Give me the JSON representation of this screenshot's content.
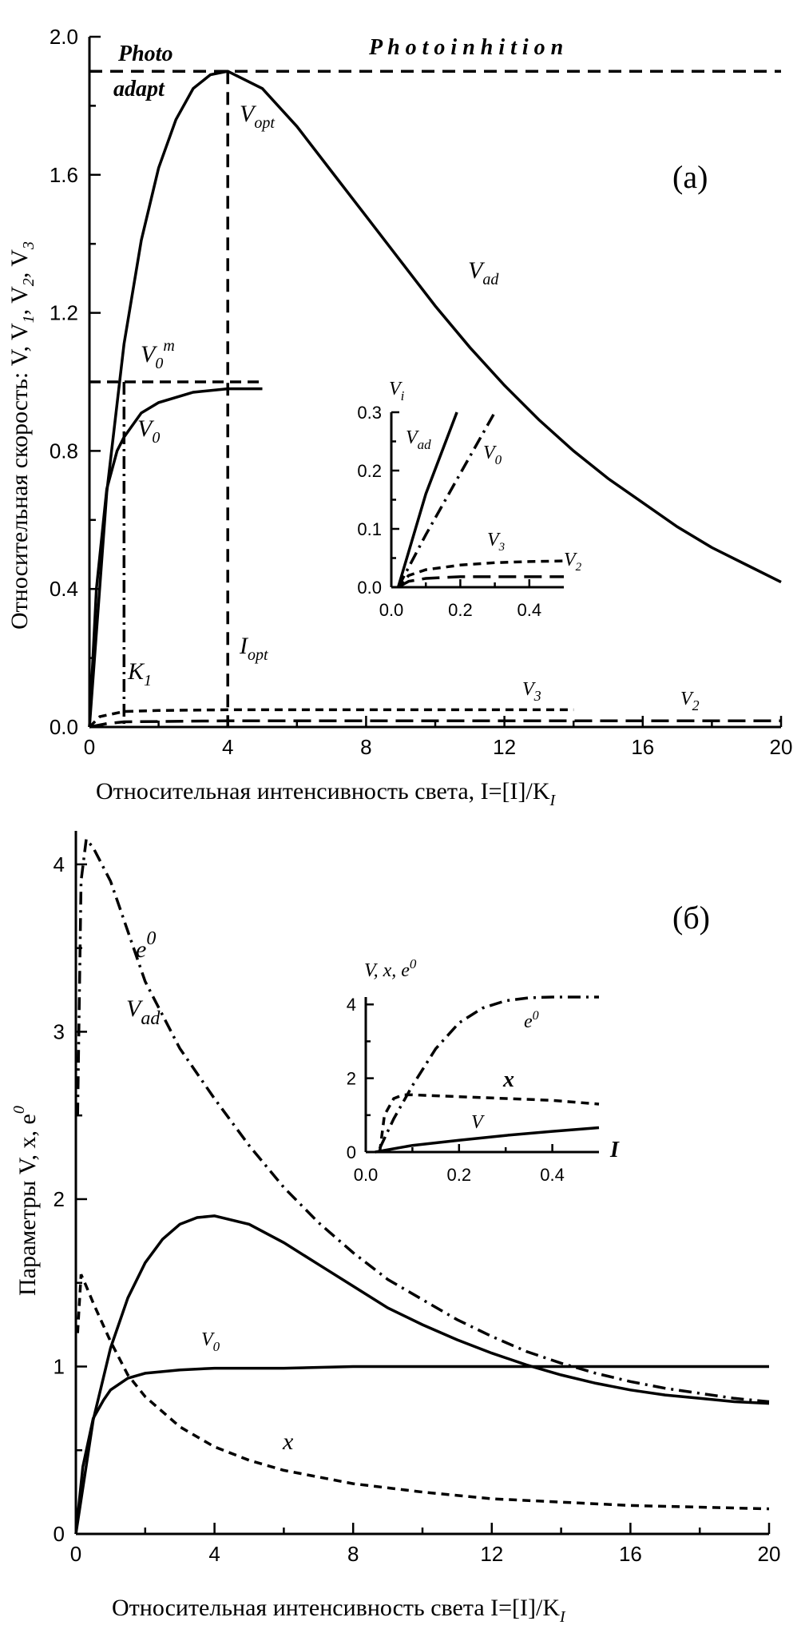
{
  "chart_data": [
    {
      "id": "panel_a",
      "type": "line",
      "panel_label": "(а)",
      "xlabel": "Относительная интенсивность света, I=[I]/K",
      "xlabel_sub": "I",
      "ylabel": "Относительная скорость: V, V",
      "ylabel_tail": ", V",
      "ylabel_tail2": ", V",
      "xlim": [
        0,
        20
      ],
      "ylim": [
        0,
        2.0
      ],
      "xticks": [
        "0",
        "4",
        "8",
        "12",
        "16",
        "20"
      ],
      "yticks": [
        "0.0",
        "0.4",
        "0.8",
        "1.2",
        "1.6",
        "2.0"
      ],
      "region_labels": {
        "photo": "Photo",
        "adapt": "adapt",
        "photoinhibition": "P h o t o i n h i t i o n"
      },
      "annotations": {
        "V_opt": "opt",
        "V_ad": "ad",
        "V0m": "0",
        "V0m_sup": "m",
        "V0": "0",
        "K1": "1",
        "I_opt": "opt",
        "V3": "3",
        "V2": "2"
      },
      "reference_lines": {
        "V_opt_level": 1.9,
        "I_opt": 4,
        "V0m_level": 1.0,
        "K1": 1
      },
      "series": [
        {
          "name": "V_ad",
          "x": [
            0,
            0.5,
            1,
            1.5,
            2,
            2.5,
            3,
            3.5,
            4,
            5,
            6,
            7,
            8,
            9,
            10,
            11,
            12,
            13,
            14,
            15,
            16,
            17,
            18,
            19,
            20
          ],
          "y": [
            0,
            0.68,
            1.11,
            1.41,
            1.62,
            1.76,
            1.85,
            1.89,
            1.9,
            1.85,
            1.74,
            1.61,
            1.48,
            1.35,
            1.22,
            1.1,
            0.99,
            0.89,
            0.8,
            0.72,
            0.65,
            0.58,
            0.52,
            0.47,
            0.42
          ]
        },
        {
          "name": "V_0",
          "x": [
            0,
            0.2,
            0.5,
            0.8,
            1,
            1.5,
            2,
            3,
            4,
            5
          ],
          "y": [
            0,
            0.4,
            0.69,
            0.8,
            0.84,
            0.91,
            0.94,
            0.97,
            0.98,
            0.98
          ]
        },
        {
          "name": "V_3",
          "x": [
            0,
            0.3,
            1,
            2,
            4,
            8,
            12,
            14
          ],
          "y": [
            0,
            0.03,
            0.045,
            0.048,
            0.05,
            0.05,
            0.05,
            0.05
          ]
        },
        {
          "name": "V_2",
          "x": [
            0,
            0.5,
            1,
            4,
            8,
            12,
            16,
            20
          ],
          "y": [
            0,
            0.01,
            0.015,
            0.018,
            0.018,
            0.018,
            0.018,
            0.018
          ]
        }
      ],
      "inset": {
        "ylabel": "V",
        "ylabel_sub": "i",
        "xlim": [
          0,
          0.5
        ],
        "ylim": [
          0,
          0.3
        ],
        "xticks": [
          "0.0",
          "0.2",
          "0.4"
        ],
        "yticks": [
          "0.0",
          "0.1",
          "0.2",
          "0.3"
        ],
        "labels": {
          "V_ad": "ad",
          "V_0": "0",
          "V_3": "3",
          "V_2": "2"
        },
        "series": [
          {
            "name": "V_ad",
            "x": [
              0.02,
              0.1,
              0.19
            ],
            "y": [
              0,
              0.16,
              0.3
            ]
          },
          {
            "name": "V_0",
            "x": [
              0.02,
              0.1,
              0.2,
              0.3
            ],
            "y": [
              0,
              0.09,
              0.195,
              0.3
            ]
          },
          {
            "name": "V_3",
            "x": [
              0.02,
              0.05,
              0.1,
              0.2,
              0.3,
              0.4,
              0.5
            ],
            "y": [
              0,
              0.02,
              0.03,
              0.038,
              0.042,
              0.044,
              0.045
            ]
          },
          {
            "name": "V_2",
            "x": [
              0.02,
              0.05,
              0.1,
              0.2,
              0.35,
              0.5
            ],
            "y": [
              0,
              0.01,
              0.015,
              0.018,
              0.018,
              0.018
            ]
          }
        ]
      }
    },
    {
      "id": "panel_b",
      "type": "line",
      "panel_label": "(б)",
      "xlabel": "Относительная интенсивность света I=[I]/K",
      "xlabel_sub": "I",
      "ylabel": "Параметры V, x, e",
      "ylabel_sup": "0",
      "xlim": [
        0,
        20
      ],
      "ylim": [
        0,
        4.2
      ],
      "xticks": [
        "0",
        "4",
        "8",
        "12",
        "16",
        "20"
      ],
      "yticks": [
        "0",
        "1",
        "2",
        "3",
        "4"
      ],
      "annotations": {
        "e0": "e",
        "e0_sup": "0",
        "V_ad": "ad",
        "V_0": "0",
        "x": "x"
      },
      "series": [
        {
          "name": "e0",
          "x": [
            0.05,
            0.15,
            0.3,
            0.5,
            1,
            1.5,
            2,
            3,
            4,
            5,
            6,
            7,
            8,
            9,
            10,
            11,
            12,
            13,
            14,
            15,
            16,
            17,
            18,
            19,
            20
          ],
          "y": [
            2.5,
            3.9,
            4.15,
            4.1,
            3.9,
            3.6,
            3.3,
            2.9,
            2.6,
            2.32,
            2.07,
            1.86,
            1.68,
            1.52,
            1.4,
            1.28,
            1.18,
            1.09,
            1.02,
            0.96,
            0.91,
            0.87,
            0.84,
            0.81,
            0.79
          ]
        },
        {
          "name": "V_ad",
          "x": [
            0,
            0.5,
            1,
            1.5,
            2,
            2.5,
            3,
            3.5,
            4,
            5,
            6,
            7,
            8,
            9,
            10,
            11,
            12,
            13,
            14,
            15,
            16,
            17,
            18,
            19,
            20
          ],
          "y": [
            0,
            0.68,
            1.11,
            1.41,
            1.62,
            1.76,
            1.85,
            1.89,
            1.9,
            1.85,
            1.74,
            1.61,
            1.48,
            1.35,
            1.25,
            1.16,
            1.08,
            1.01,
            0.95,
            0.9,
            0.86,
            0.83,
            0.81,
            0.79,
            0.78
          ]
        },
        {
          "name": "V_0",
          "x": [
            0,
            0.2,
            0.5,
            0.8,
            1,
            1.5,
            2,
            3,
            4,
            6,
            8,
            12,
            16,
            20
          ],
          "y": [
            0,
            0.4,
            0.69,
            0.8,
            0.86,
            0.93,
            0.96,
            0.98,
            0.99,
            0.99,
            1.0,
            1.0,
            1.0,
            1.0
          ]
        },
        {
          "name": "x",
          "x": [
            0.05,
            0.15,
            0.3,
            0.5,
            1,
            1.5,
            2,
            3,
            4,
            5,
            6,
            8,
            10,
            12,
            14,
            16,
            18,
            20
          ],
          "y": [
            1.2,
            1.55,
            1.48,
            1.38,
            1.15,
            0.95,
            0.82,
            0.64,
            0.52,
            0.44,
            0.38,
            0.3,
            0.25,
            0.21,
            0.19,
            0.17,
            0.16,
            0.15
          ]
        }
      ],
      "inset": {
        "ylabel": "V, x, e",
        "ylabel_sup": "0",
        "xlabel": "I",
        "xlim": [
          0,
          0.5
        ],
        "ylim": [
          0,
          4.2
        ],
        "xticks": [
          "0.0",
          "0.2",
          "0.4"
        ],
        "yticks": [
          "0",
          "2",
          "4"
        ],
        "labels": {
          "e0": "e",
          "e0_sup": "0",
          "x": "x",
          "V": "V"
        },
        "series": [
          {
            "name": "e0",
            "x": [
              0.03,
              0.06,
              0.1,
              0.15,
              0.2,
              0.25,
              0.3,
              0.35,
              0.4,
              0.5
            ],
            "y": [
              0.1,
              0.9,
              1.8,
              2.8,
              3.5,
              3.9,
              4.1,
              4.18,
              4.2,
              4.2
            ]
          },
          {
            "name": "x",
            "x": [
              0.03,
              0.04,
              0.06,
              0.08,
              0.1,
              0.2,
              0.3,
              0.4,
              0.5
            ],
            "y": [
              0,
              1.0,
              1.45,
              1.55,
              1.55,
              1.5,
              1.45,
              1.4,
              1.3
            ]
          },
          {
            "name": "V",
            "x": [
              0.02,
              0.1,
              0.2,
              0.3,
              0.4,
              0.5
            ],
            "y": [
              0,
              0.18,
              0.32,
              0.45,
              0.56,
              0.66
            ]
          }
        ]
      }
    }
  ]
}
